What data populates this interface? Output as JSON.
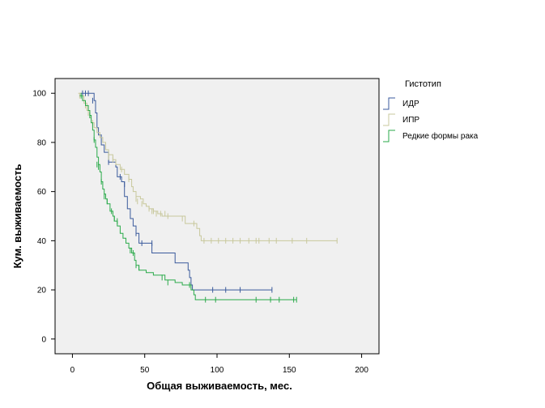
{
  "chart_data": {
    "type": "line",
    "subtype": "kaplan-meier",
    "title": "",
    "xlabel": "Общая выживаемость, мес.",
    "ylabel": "Кум. выживаемость",
    "xlim": [
      -12,
      212
    ],
    "ylim": [
      -6,
      106
    ],
    "xticks": [
      0,
      50,
      100,
      150,
      200
    ],
    "yticks": [
      0,
      20,
      40,
      60,
      80,
      100
    ],
    "grid": false,
    "plot_background": "#f0f0f0",
    "legend": {
      "title": "Гистотип",
      "position": "top-right, outside plot"
    },
    "series": [
      {
        "name": "ИДР",
        "color": "#3a5a9c",
        "steps": [
          [
            6,
            100
          ],
          [
            14,
            100
          ],
          [
            15,
            97
          ],
          [
            16,
            92
          ],
          [
            17,
            86
          ],
          [
            18,
            83
          ],
          [
            20,
            79
          ],
          [
            22,
            76
          ],
          [
            25,
            72
          ],
          [
            30,
            70
          ],
          [
            31,
            66
          ],
          [
            34,
            64
          ],
          [
            36,
            58
          ],
          [
            38,
            53
          ],
          [
            40,
            49
          ],
          [
            42,
            46
          ],
          [
            44,
            43
          ],
          [
            46,
            39
          ],
          [
            53,
            39
          ],
          [
            55,
            35
          ],
          [
            70,
            35
          ],
          [
            71,
            31
          ],
          [
            80,
            28
          ],
          [
            81,
            25
          ],
          [
            82,
            22
          ],
          [
            83,
            20
          ],
          [
            138,
            20
          ]
        ],
        "censored": [
          [
            7,
            100
          ],
          [
            9,
            100
          ],
          [
            11,
            100
          ],
          [
            14,
            97
          ],
          [
            25,
            72
          ],
          [
            33,
            66
          ],
          [
            36,
            63
          ],
          [
            44,
            43
          ],
          [
            48,
            39
          ],
          [
            55,
            39
          ],
          [
            97,
            20
          ],
          [
            106,
            20
          ],
          [
            116,
            20
          ],
          [
            138,
            20
          ]
        ]
      },
      {
        "name": "ИПР",
        "color": "#c8c89c",
        "steps": [
          [
            4,
            100
          ],
          [
            6,
            99
          ],
          [
            8,
            96
          ],
          [
            10,
            93
          ],
          [
            12,
            90
          ],
          [
            13,
            88
          ],
          [
            15,
            86
          ],
          [
            17,
            84
          ],
          [
            19,
            82
          ],
          [
            21,
            80
          ],
          [
            23,
            77
          ],
          [
            25,
            75
          ],
          [
            28,
            73
          ],
          [
            30,
            71
          ],
          [
            33,
            69
          ],
          [
            36,
            67
          ],
          [
            39,
            65
          ],
          [
            41,
            62
          ],
          [
            42,
            60
          ],
          [
            44,
            58
          ],
          [
            47,
            57
          ],
          [
            49,
            55
          ],
          [
            51,
            54
          ],
          [
            53,
            53
          ],
          [
            56,
            52
          ],
          [
            59,
            51
          ],
          [
            62,
            50
          ],
          [
            77,
            50
          ],
          [
            78,
            47
          ],
          [
            84,
            47
          ],
          [
            86,
            45
          ],
          [
            88,
            42
          ],
          [
            89,
            40
          ],
          [
            183,
            40
          ]
        ],
        "censored": [
          [
            5,
            99
          ],
          [
            9,
            95
          ],
          [
            11,
            92
          ],
          [
            14,
            88
          ],
          [
            25,
            74
          ],
          [
            28,
            73
          ],
          [
            34,
            69
          ],
          [
            39,
            65
          ],
          [
            44,
            57
          ],
          [
            45,
            56
          ],
          [
            48,
            55
          ],
          [
            53,
            53
          ],
          [
            55,
            52
          ],
          [
            56,
            52
          ],
          [
            58,
            51
          ],
          [
            61,
            51
          ],
          [
            64,
            51
          ],
          [
            66,
            50
          ],
          [
            76,
            49
          ],
          [
            84,
            47
          ],
          [
            91,
            40
          ],
          [
            96,
            40
          ],
          [
            101,
            40
          ],
          [
            106,
            40
          ],
          [
            111,
            40
          ],
          [
            116,
            40
          ],
          [
            122,
            40
          ],
          [
            127,
            40
          ],
          [
            129,
            40
          ],
          [
            136,
            40
          ],
          [
            141,
            40
          ],
          [
            152,
            40
          ],
          [
            162,
            40
          ],
          [
            183,
            40
          ]
        ]
      },
      {
        "name": "Редкие формы рака",
        "color": "#2aaa4a",
        "steps": [
          [
            5,
            99
          ],
          [
            7,
            97
          ],
          [
            9,
            95
          ],
          [
            11,
            93
          ],
          [
            12,
            91
          ],
          [
            13,
            88
          ],
          [
            14,
            85
          ],
          [
            15,
            81
          ],
          [
            16,
            78
          ],
          [
            17,
            74
          ],
          [
            18,
            71
          ],
          [
            19,
            68
          ],
          [
            20,
            64
          ],
          [
            21,
            61
          ],
          [
            22,
            59
          ],
          [
            23,
            57
          ],
          [
            24,
            55
          ],
          [
            26,
            52
          ],
          [
            28,
            50
          ],
          [
            29,
            48
          ],
          [
            31,
            46
          ],
          [
            33,
            43
          ],
          [
            35,
            41
          ],
          [
            37,
            39
          ],
          [
            39,
            37
          ],
          [
            41,
            35
          ],
          [
            43,
            32
          ],
          [
            44,
            30
          ],
          [
            46,
            28
          ],
          [
            50,
            28
          ],
          [
            51,
            27
          ],
          [
            55,
            27
          ],
          [
            56,
            26
          ],
          [
            62,
            26
          ],
          [
            64,
            24
          ],
          [
            70,
            24
          ],
          [
            71,
            23
          ],
          [
            75,
            23
          ],
          [
            76,
            22
          ],
          [
            81,
            22
          ],
          [
            82,
            20
          ],
          [
            84,
            18
          ],
          [
            85,
            16
          ],
          [
            155,
            16
          ]
        ],
        "censored": [
          [
            6,
            99
          ],
          [
            12,
            91
          ],
          [
            15,
            81
          ],
          [
            17,
            71
          ],
          [
            18,
            70
          ],
          [
            20,
            64
          ],
          [
            22,
            58
          ],
          [
            24,
            56
          ],
          [
            27,
            52
          ],
          [
            29,
            49
          ],
          [
            31,
            48
          ],
          [
            40,
            36
          ],
          [
            42,
            35
          ],
          [
            44,
            30
          ],
          [
            46,
            29
          ],
          [
            62,
            25
          ],
          [
            66,
            23
          ],
          [
            81,
            22
          ],
          [
            92,
            16
          ],
          [
            99,
            16
          ],
          [
            127,
            16
          ],
          [
            137,
            16
          ],
          [
            143,
            16
          ],
          [
            153,
            16
          ],
          [
            155,
            16
          ]
        ]
      }
    ]
  }
}
